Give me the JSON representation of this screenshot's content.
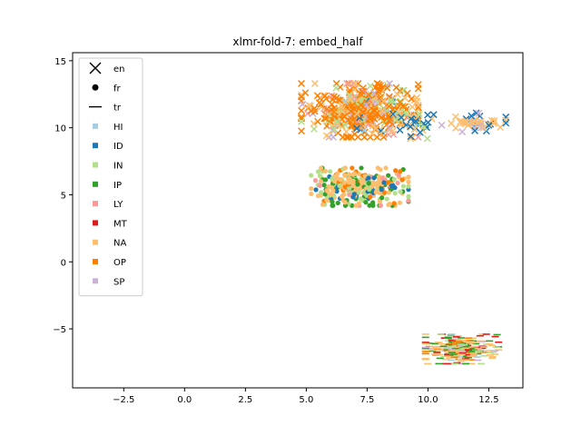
{
  "chart_data": {
    "type": "scatter",
    "title": "xlmr-fold-7: embed_half",
    "xlabel": "",
    "ylabel": "",
    "xlim": [
      -4.6,
      13.9
    ],
    "ylim": [
      -9.4,
      15.6
    ],
    "xticks": [
      -2.5,
      0.0,
      2.5,
      5.0,
      7.5,
      10.0,
      12.5
    ],
    "xtick_labels": [
      "−2.5",
      "0.0",
      "2.5",
      "5.0",
      "7.5",
      "10.0",
      "12.5"
    ],
    "yticks": [
      -5,
      0,
      5,
      10,
      15
    ],
    "ytick_labels": [
      "−5",
      "0",
      "5",
      "10",
      "15"
    ],
    "grid": false,
    "legend_position": "top-left",
    "legend": {
      "markers": [
        {
          "label": "en",
          "shape": "x"
        },
        {
          "label": "fr",
          "shape": "dot"
        },
        {
          "label": "tr",
          "shape": "dash"
        }
      ],
      "classes": [
        {
          "label": "HI",
          "color": "#a6cee3"
        },
        {
          "label": "ID",
          "color": "#1f78b4"
        },
        {
          "label": "IN",
          "color": "#b2df8a"
        },
        {
          "label": "IP",
          "color": "#33a02c"
        },
        {
          "label": "LY",
          "color": "#fb9a99"
        },
        {
          "label": "MT",
          "color": "#e31a1c"
        },
        {
          "label": "NA",
          "color": "#fdbf6f"
        },
        {
          "label": "OP",
          "color": "#ff7f00"
        },
        {
          "label": "SP",
          "color": "#cab2d6"
        }
      ]
    },
    "clusters": [
      {
        "region": "upper",
        "shape": "x",
        "cx": 7.2,
        "cy": 11.3,
        "sx": 1.2,
        "sy": 1.0,
        "n": 420,
        "mix": {
          "OP": 0.5,
          "NA": 0.2,
          "IN": 0.12,
          "SP": 0.08,
          "LY": 0.04,
          "HI": 0.03,
          "ID": 0.03
        }
      },
      {
        "region": "upper-right",
        "shape": "x",
        "cx": 11.8,
        "cy": 10.4,
        "sx": 0.7,
        "sy": 0.35,
        "n": 50,
        "mix": {
          "NA": 0.6,
          "ID": 0.2,
          "SP": 0.2
        }
      },
      {
        "region": "upper-mid",
        "shape": "x",
        "cx": 9.4,
        "cy": 10.2,
        "sx": 0.5,
        "sy": 0.5,
        "n": 30,
        "mix": {
          "ID": 0.6,
          "IN": 0.2,
          "NA": 0.2
        }
      },
      {
        "region": "middle",
        "shape": "dot",
        "cx": 7.2,
        "cy": 5.6,
        "sx": 1.0,
        "sy": 0.7,
        "n": 320,
        "mix": {
          "NA": 0.35,
          "IP": 0.2,
          "IN": 0.2,
          "ID": 0.12,
          "OP": 0.08,
          "LY": 0.05
        }
      },
      {
        "region": "lower",
        "shape": "dash",
        "cx": 11.4,
        "cy": -6.5,
        "sx": 0.75,
        "sy": 0.55,
        "n": 260,
        "mix": {
          "NA": 0.35,
          "IP": 0.2,
          "MT": 0.15,
          "OP": 0.12,
          "IN": 0.1,
          "HI": 0.04,
          "SP": 0.04
        }
      }
    ]
  }
}
